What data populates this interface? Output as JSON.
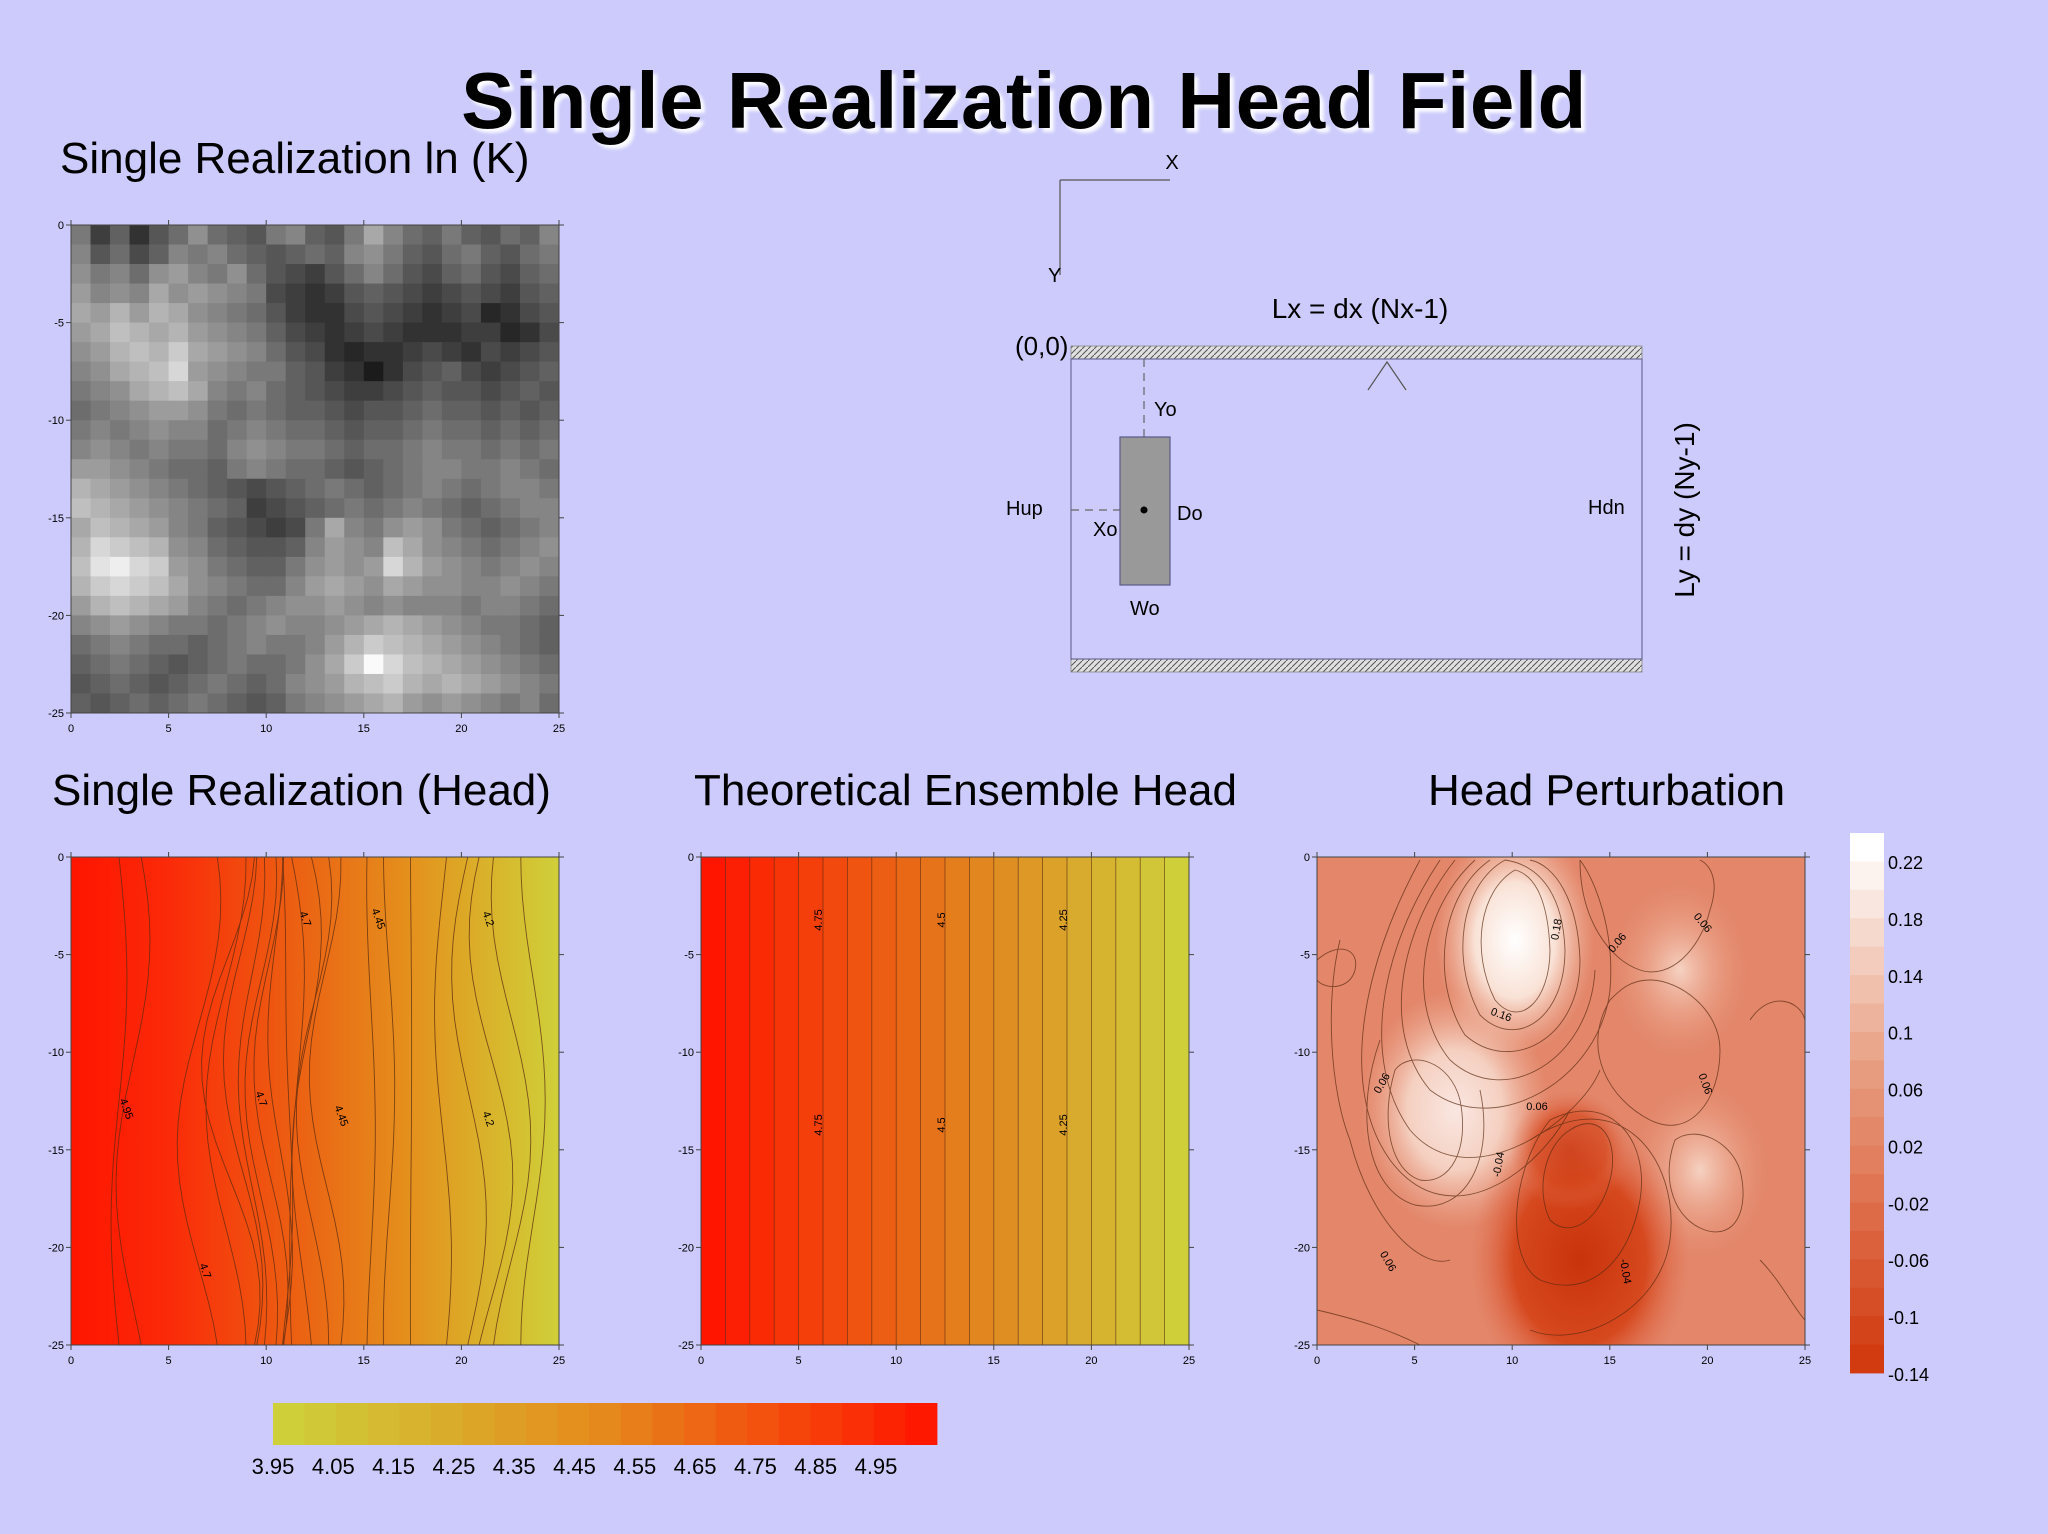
{
  "slide": {
    "title": "Single Realization Head Field",
    "colors": {
      "background": "#cccbfb"
    }
  },
  "schematic": {
    "x_axis_label": "X",
    "y_axis_label": "Y",
    "origin_label": "(0,0)",
    "lx_label": "Lx = dx (Nx-1)",
    "ly_label": "Ly = dy (Ny-1)",
    "yo_label": "Yo",
    "xo_label": "Xo",
    "do_label": "Do",
    "wo_label": "Wo",
    "hup_label": "Hup",
    "hdn_label": "Hdn"
  },
  "colorbar_head": {
    "ticks": [
      "3.95",
      "4.05",
      "4.15",
      "4.25",
      "4.35",
      "4.45",
      "4.55",
      "4.65",
      "4.75",
      "4.85",
      "4.95"
    ],
    "colors": [
      "#cfcf3a",
      "#ff1800"
    ]
  },
  "colorbar_perturbation": {
    "ticks": [
      "0.22",
      "0.18",
      "0.14",
      "0.1",
      "0.06",
      "0.02",
      "-0.02",
      "-0.06",
      "-0.1",
      "-0.14"
    ],
    "colors": [
      "#ffffff",
      "#d23a10"
    ]
  },
  "chart_data": [
    {
      "type": "heatmap",
      "title": "Single Realization ln (K)",
      "colormap": "grayscale",
      "x_ticks": [
        "0",
        "5",
        "10",
        "15",
        "20",
        "25"
      ],
      "y_ticks": [
        "0",
        "-5",
        "-10",
        "-15",
        "-20",
        "-25"
      ],
      "xlim": [
        0,
        25
      ],
      "ylim": [
        -25,
        0
      ],
      "grid_size": [
        25,
        25
      ],
      "values": [
        [
          0.45,
          0.2,
          0.35,
          0.15,
          0.3,
          0.4,
          0.55,
          0.4,
          0.35,
          0.3,
          0.45,
          0.5,
          0.35,
          0.3,
          0.45,
          0.65,
          0.5,
          0.4,
          0.35,
          0.45,
          0.35,
          0.3,
          0.4,
          0.35,
          0.5
        ],
        [
          0.5,
          0.3,
          0.4,
          0.25,
          0.35,
          0.5,
          0.45,
          0.5,
          0.4,
          0.35,
          0.3,
          0.35,
          0.4,
          0.35,
          0.5,
          0.55,
          0.45,
          0.35,
          0.3,
          0.4,
          0.45,
          0.35,
          0.3,
          0.4,
          0.45
        ],
        [
          0.55,
          0.45,
          0.5,
          0.4,
          0.55,
          0.6,
          0.5,
          0.45,
          0.55,
          0.4,
          0.3,
          0.25,
          0.2,
          0.3,
          0.4,
          0.5,
          0.4,
          0.3,
          0.25,
          0.35,
          0.4,
          0.3,
          0.25,
          0.35,
          0.4
        ],
        [
          0.6,
          0.5,
          0.55,
          0.5,
          0.65,
          0.55,
          0.6,
          0.55,
          0.5,
          0.45,
          0.25,
          0.2,
          0.15,
          0.2,
          0.3,
          0.35,
          0.3,
          0.25,
          0.2,
          0.25,
          0.3,
          0.25,
          0.2,
          0.3,
          0.35
        ],
        [
          0.65,
          0.6,
          0.7,
          0.6,
          0.7,
          0.65,
          0.55,
          0.5,
          0.45,
          0.4,
          0.3,
          0.2,
          0.15,
          0.15,
          0.25,
          0.3,
          0.25,
          0.2,
          0.15,
          0.2,
          0.25,
          0.1,
          0.15,
          0.25,
          0.3
        ],
        [
          0.6,
          0.65,
          0.75,
          0.7,
          0.65,
          0.7,
          0.6,
          0.55,
          0.5,
          0.45,
          0.35,
          0.25,
          0.2,
          0.15,
          0.2,
          0.25,
          0.2,
          0.15,
          0.15,
          0.15,
          0.2,
          0.2,
          0.1,
          0.15,
          0.25
        ],
        [
          0.55,
          0.6,
          0.7,
          0.75,
          0.7,
          0.8,
          0.65,
          0.6,
          0.55,
          0.5,
          0.4,
          0.3,
          0.25,
          0.15,
          0.1,
          0.15,
          0.15,
          0.2,
          0.25,
          0.2,
          0.15,
          0.25,
          0.2,
          0.25,
          0.3
        ],
        [
          0.5,
          0.55,
          0.65,
          0.7,
          0.75,
          0.85,
          0.6,
          0.55,
          0.5,
          0.45,
          0.45,
          0.35,
          0.3,
          0.2,
          0.15,
          0.05,
          0.15,
          0.25,
          0.3,
          0.35,
          0.25,
          0.2,
          0.25,
          0.3,
          0.35
        ],
        [
          0.45,
          0.5,
          0.55,
          0.65,
          0.7,
          0.75,
          0.65,
          0.5,
          0.45,
          0.5,
          0.4,
          0.35,
          0.3,
          0.25,
          0.2,
          0.2,
          0.25,
          0.3,
          0.35,
          0.3,
          0.3,
          0.25,
          0.3,
          0.35,
          0.3
        ],
        [
          0.4,
          0.45,
          0.5,
          0.55,
          0.6,
          0.6,
          0.55,
          0.45,
          0.4,
          0.45,
          0.4,
          0.35,
          0.35,
          0.3,
          0.25,
          0.3,
          0.3,
          0.35,
          0.4,
          0.35,
          0.35,
          0.3,
          0.35,
          0.3,
          0.35
        ],
        [
          0.45,
          0.5,
          0.45,
          0.5,
          0.55,
          0.5,
          0.5,
          0.4,
          0.45,
          0.5,
          0.45,
          0.4,
          0.4,
          0.35,
          0.3,
          0.35,
          0.35,
          0.4,
          0.45,
          0.4,
          0.4,
          0.35,
          0.4,
          0.35,
          0.4
        ],
        [
          0.5,
          0.55,
          0.5,
          0.45,
          0.5,
          0.45,
          0.45,
          0.4,
          0.5,
          0.55,
          0.5,
          0.45,
          0.45,
          0.4,
          0.35,
          0.4,
          0.4,
          0.45,
          0.5,
          0.45,
          0.45,
          0.4,
          0.45,
          0.4,
          0.45
        ],
        [
          0.6,
          0.6,
          0.55,
          0.5,
          0.45,
          0.4,
          0.4,
          0.35,
          0.45,
          0.5,
          0.45,
          0.4,
          0.4,
          0.35,
          0.3,
          0.35,
          0.4,
          0.45,
          0.5,
          0.5,
          0.45,
          0.45,
          0.5,
          0.45,
          0.4
        ],
        [
          0.7,
          0.65,
          0.6,
          0.55,
          0.5,
          0.45,
          0.4,
          0.35,
          0.3,
          0.25,
          0.3,
          0.35,
          0.4,
          0.45,
          0.4,
          0.35,
          0.4,
          0.45,
          0.5,
          0.45,
          0.4,
          0.45,
          0.5,
          0.5,
          0.45
        ],
        [
          0.75,
          0.7,
          0.65,
          0.6,
          0.55,
          0.5,
          0.45,
          0.4,
          0.35,
          0.2,
          0.25,
          0.3,
          0.35,
          0.4,
          0.45,
          0.4,
          0.45,
          0.5,
          0.45,
          0.4,
          0.35,
          0.4,
          0.45,
          0.5,
          0.5
        ],
        [
          0.65,
          0.75,
          0.7,
          0.65,
          0.6,
          0.5,
          0.45,
          0.35,
          0.3,
          0.25,
          0.2,
          0.25,
          0.45,
          0.65,
          0.5,
          0.45,
          0.55,
          0.6,
          0.55,
          0.45,
          0.4,
          0.35,
          0.4,
          0.45,
          0.5
        ],
        [
          0.7,
          0.85,
          0.8,
          0.75,
          0.7,
          0.55,
          0.5,
          0.4,
          0.35,
          0.3,
          0.3,
          0.35,
          0.5,
          0.6,
          0.55,
          0.5,
          0.75,
          0.65,
          0.55,
          0.5,
          0.45,
          0.4,
          0.45,
          0.5,
          0.55
        ],
        [
          0.75,
          0.9,
          0.95,
          0.85,
          0.8,
          0.6,
          0.55,
          0.45,
          0.4,
          0.35,
          0.35,
          0.45,
          0.55,
          0.6,
          0.55,
          0.6,
          0.85,
          0.7,
          0.6,
          0.55,
          0.5,
          0.45,
          0.5,
          0.55,
          0.5
        ],
        [
          0.7,
          0.8,
          0.85,
          0.8,
          0.75,
          0.65,
          0.55,
          0.5,
          0.45,
          0.4,
          0.4,
          0.5,
          0.6,
          0.65,
          0.6,
          0.55,
          0.65,
          0.6,
          0.55,
          0.55,
          0.5,
          0.5,
          0.55,
          0.5,
          0.45
        ],
        [
          0.6,
          0.7,
          0.75,
          0.7,
          0.65,
          0.6,
          0.5,
          0.45,
          0.4,
          0.45,
          0.5,
          0.55,
          0.55,
          0.6,
          0.55,
          0.5,
          0.55,
          0.5,
          0.5,
          0.5,
          0.45,
          0.5,
          0.5,
          0.45,
          0.4
        ],
        [
          0.5,
          0.55,
          0.6,
          0.55,
          0.5,
          0.45,
          0.45,
          0.4,
          0.45,
          0.5,
          0.55,
          0.5,
          0.5,
          0.55,
          0.6,
          0.65,
          0.7,
          0.65,
          0.6,
          0.55,
          0.5,
          0.45,
          0.45,
          0.4,
          0.35
        ],
        [
          0.4,
          0.45,
          0.5,
          0.45,
          0.4,
          0.4,
          0.35,
          0.4,
          0.45,
          0.5,
          0.45,
          0.45,
          0.5,
          0.6,
          0.7,
          0.8,
          0.75,
          0.7,
          0.65,
          0.6,
          0.55,
          0.5,
          0.45,
          0.4,
          0.35
        ],
        [
          0.35,
          0.4,
          0.45,
          0.4,
          0.35,
          0.3,
          0.35,
          0.4,
          0.45,
          0.4,
          0.4,
          0.45,
          0.55,
          0.65,
          0.8,
          1.0,
          0.85,
          0.75,
          0.7,
          0.65,
          0.6,
          0.55,
          0.5,
          0.45,
          0.4
        ],
        [
          0.3,
          0.35,
          0.4,
          0.35,
          0.3,
          0.35,
          0.4,
          0.45,
          0.4,
          0.35,
          0.4,
          0.5,
          0.55,
          0.6,
          0.7,
          0.75,
          0.8,
          0.7,
          0.65,
          0.7,
          0.65,
          0.6,
          0.55,
          0.5,
          0.45
        ],
        [
          0.35,
          0.3,
          0.35,
          0.4,
          0.35,
          0.4,
          0.45,
          0.4,
          0.35,
          0.3,
          0.35,
          0.45,
          0.5,
          0.55,
          0.6,
          0.65,
          0.7,
          0.6,
          0.55,
          0.6,
          0.55,
          0.5,
          0.45,
          0.5,
          0.4
        ]
      ]
    },
    {
      "type": "heatmap",
      "title": "Single Realization (Head)",
      "colormap": "yellow-red",
      "x_ticks": [
        "0",
        "5",
        "10",
        "15",
        "20",
        "25"
      ],
      "y_ticks": [
        "0",
        "-5",
        "-10",
        "-15",
        "-20",
        "-25"
      ],
      "xlim": [
        0,
        25
      ],
      "ylim": [
        -25,
        0
      ],
      "contour_labels": [
        "4.7",
        "4.45",
        "4.2",
        "4.95",
        "4.7",
        "4.45",
        "4.2",
        "4.7"
      ]
    },
    {
      "type": "heatmap",
      "title": "Theoretical Ensemble Head",
      "colormap": "yellow-red",
      "x_ticks": [
        "0",
        "5",
        "10",
        "15",
        "20",
        "25"
      ],
      "y_ticks": [
        "0",
        "-5",
        "-10",
        "-15",
        "-20",
        "-25"
      ],
      "xlim": [
        0,
        25
      ],
      "ylim": [
        -25,
        0
      ],
      "contour_labels": [
        "4.75",
        "4.5",
        "4.25",
        "4.75",
        "4.5",
        "4.25"
      ]
    },
    {
      "type": "heatmap",
      "title": "Head Perturbation",
      "colormap": "white-red",
      "x_ticks": [
        "0",
        "5",
        "10",
        "15",
        "20",
        "25"
      ],
      "y_ticks": [
        "0",
        "-5",
        "-10",
        "-15",
        "-20",
        "-25"
      ],
      "xlim": [
        0,
        25
      ],
      "ylim": [
        -25,
        0
      ],
      "contour_labels": [
        "0.18",
        "0.06",
        "0.06",
        "0.16",
        "0.06",
        "0.06",
        "0.06",
        "-0.04",
        "0.06",
        "-0.04"
      ]
    }
  ]
}
